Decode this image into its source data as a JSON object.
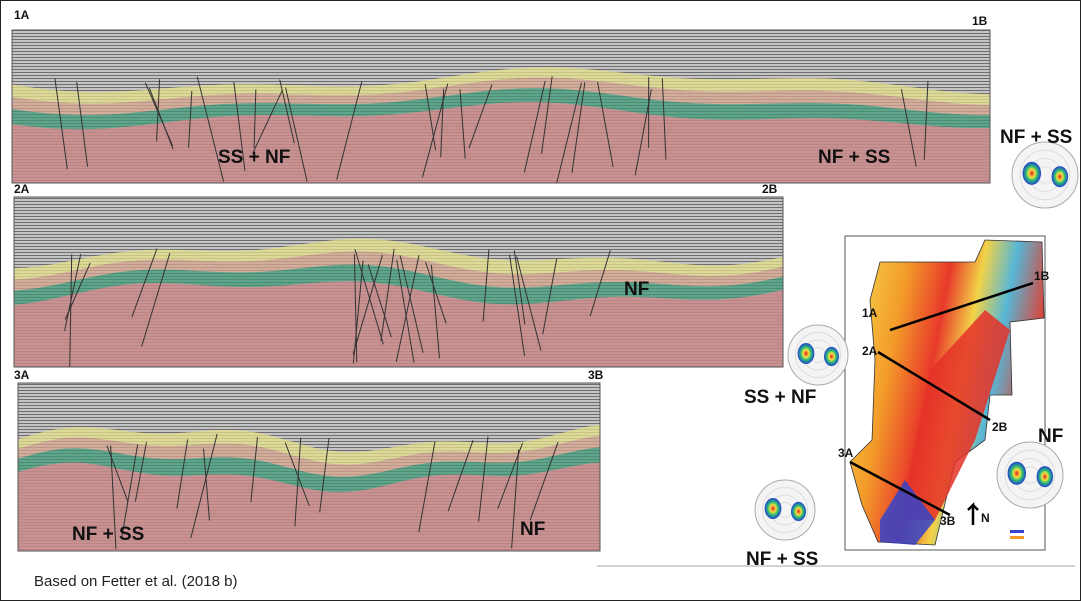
{
  "panels": [
    {
      "start": "1A",
      "end": "1B",
      "labels": [
        "SS + NF",
        "NF + SS"
      ]
    },
    {
      "start": "2A",
      "end": "2B",
      "labels": [
        "NF"
      ]
    },
    {
      "start": "3A",
      "end": "3B",
      "labels": [
        "NF + SS",
        "NF"
      ]
    }
  ],
  "map": {
    "line_labels": [
      "1B",
      "1A",
      "2A",
      "2B",
      "3A",
      "3B"
    ],
    "north": "N"
  },
  "stereonets": [
    {
      "label": "NF + SS"
    },
    {
      "label": "SS + NF"
    },
    {
      "label": "NF"
    },
    {
      "label": "NF + SS"
    }
  ],
  "caption": "Based on Fetter et al. (2018 b)"
}
